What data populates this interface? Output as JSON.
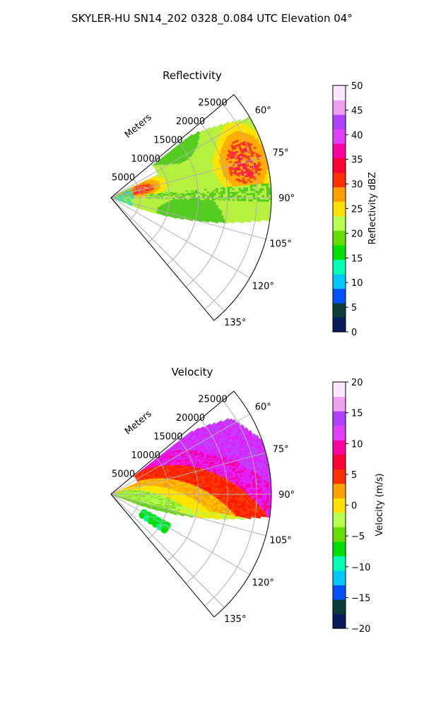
{
  "figure": {
    "title": "SKYLER-HU  SN14_202  0328_0.084 UTC Elevation 04°"
  },
  "chart_data": [
    {
      "type": "heatmap",
      "subtype": "polar-sector-ppi",
      "title": "Reflectivity",
      "range_label": "Meters",
      "range_ticks": [
        5000,
        10000,
        15000,
        20000,
        25000
      ],
      "range_max": 27500,
      "azimuth_range_deg": [
        50,
        140
      ],
      "azimuth_ticks": [
        "60°",
        "75°",
        "90°",
        "105°",
        "120°",
        "135°"
      ],
      "azimuth_tick_values": [
        60,
        75,
        90,
        105,
        120,
        135
      ],
      "grid": true,
      "colorbar": {
        "label": "Reflectivity dBZ",
        "min": 0,
        "max": 50,
        "ticks": [
          "0",
          "5",
          "10",
          "15",
          "20",
          "25",
          "30",
          "35",
          "40",
          "45",
          "50"
        ],
        "colors": [
          "#0a1a5c",
          "#0b3a3a",
          "#0050ff",
          "#00c8ff",
          "#00ffb0",
          "#00e000",
          "#66dd00",
          "#b4ff50",
          "#ffe000",
          "#ffa000",
          "#ff3000",
          "#ff0030",
          "#ff00a0",
          "#e040ff",
          "#b040ff",
          "#f0a0f0",
          "#ffe8ff"
        ]
      },
      "field_description_colors": [
        "#b6f040",
        "#55cc22",
        "#ffe400",
        "#ffae00",
        "#ff3a1a",
        "#ff1a60",
        "#e020ff",
        "#00e8c0"
      ]
    },
    {
      "type": "heatmap",
      "subtype": "polar-sector-ppi",
      "title": "Velocity",
      "range_label": "Meters",
      "range_ticks": [
        5000,
        10000,
        15000,
        20000,
        25000
      ],
      "range_max": 27500,
      "azimuth_range_deg": [
        50,
        140
      ],
      "azimuth_ticks": [
        "60°",
        "75°",
        "90°",
        "105°",
        "120°",
        "135°"
      ],
      "azimuth_tick_values": [
        60,
        75,
        90,
        105,
        120,
        135
      ],
      "grid": true,
      "colorbar": {
        "label": "Velocity (m/s)",
        "min": -20,
        "max": 20,
        "ticks": [
          "−20",
          "−15",
          "−10",
          "−5",
          "0",
          "5",
          "10",
          "15",
          "20"
        ],
        "colors": [
          "#0a1a5c",
          "#0b3a3a",
          "#0050ff",
          "#00c8ff",
          "#00ffb0",
          "#00e000",
          "#66dd00",
          "#b4ff50",
          "#ffe000",
          "#ffa000",
          "#ff3000",
          "#ff0030",
          "#ff00a0",
          "#e040ff",
          "#b040ff",
          "#f0a0f0",
          "#ffe8ff"
        ]
      }
    }
  ]
}
